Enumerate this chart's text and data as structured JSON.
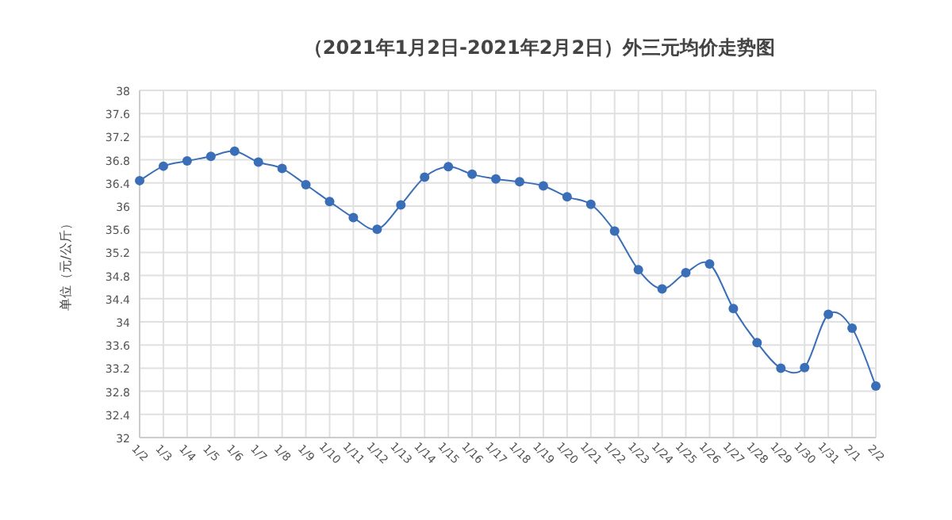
{
  "chart_data": {
    "type": "line",
    "title": "（2021年1月2日-2021年2月2日）外三元均价走势图",
    "ylabel": "单位（元/公斤）",
    "categories": [
      "1/2",
      "1/3",
      "1/4",
      "1/5",
      "1/6",
      "1/7",
      "1/8",
      "1/9",
      "1/10",
      "1/11",
      "1/12",
      "1/13",
      "1/14",
      "1/15",
      "1/16",
      "1/17",
      "1/18",
      "1/19",
      "1/20",
      "1/21",
      "1/22",
      "1/23",
      "1/24",
      "1/25",
      "1/26",
      "1/27",
      "1/28",
      "1/29",
      "1/30",
      "1/31",
      "2/1",
      "2/2"
    ],
    "series": [
      {
        "color": "#3a6fb8",
        "values": [
          36.44,
          36.69,
          36.78,
          36.86,
          36.95,
          36.76,
          36.65,
          36.37,
          36.08,
          35.8,
          35.6,
          36.02,
          36.5,
          36.68,
          36.55,
          36.47,
          36.42,
          36.35,
          36.16,
          36.03,
          35.57,
          34.9,
          34.57,
          34.85,
          35.0,
          34.23,
          33.64,
          33.2,
          33.21,
          34.13,
          33.89,
          32.89
        ]
      }
    ],
    "ylim": [
      32,
      38
    ],
    "yticks": [
      32,
      32.4,
      32.8,
      33.2,
      33.6,
      34,
      34.4,
      34.8,
      35.2,
      35.6,
      36,
      36.4,
      36.8,
      37.2,
      37.6,
      38
    ],
    "grid": true,
    "marker": "circle",
    "line_style": "solid"
  }
}
